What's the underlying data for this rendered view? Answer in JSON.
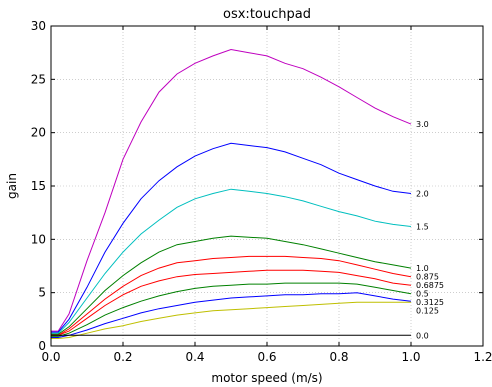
{
  "chart_data": {
    "type": "line",
    "title": "osx:touchpad",
    "xlabel": "motor speed (m/s)",
    "ylabel": "gain",
    "xlim": [
      0.0,
      1.2
    ],
    "ylim": [
      0,
      30
    ],
    "xticks": [
      "0.0",
      "0.2",
      "0.4",
      "0.6",
      "0.8",
      "1.0",
      "1.2"
    ],
    "yticks": [
      "0",
      "5",
      "10",
      "15",
      "20",
      "25",
      "30"
    ],
    "grid": true,
    "series": [
      {
        "name": "3.0",
        "color": "#bf00bf",
        "x": [
          0.0,
          0.02,
          0.05,
          0.1,
          0.15,
          0.2,
          0.25,
          0.3,
          0.35,
          0.4,
          0.45,
          0.5,
          0.55,
          0.6,
          0.65,
          0.7,
          0.75,
          0.8,
          0.85,
          0.9,
          0.95,
          1.0
        ],
        "y": [
          1.4,
          1.4,
          3.0,
          8.0,
          12.5,
          17.5,
          21.0,
          23.8,
          25.5,
          26.5,
          27.2,
          27.8,
          27.5,
          27.2,
          26.5,
          26.0,
          25.2,
          24.3,
          23.3,
          22.3,
          21.5,
          20.8
        ]
      },
      {
        "name": "2.0",
        "color": "#0000ff",
        "x": [
          0.0,
          0.02,
          0.05,
          0.1,
          0.15,
          0.2,
          0.25,
          0.3,
          0.35,
          0.4,
          0.45,
          0.5,
          0.55,
          0.6,
          0.65,
          0.7,
          0.75,
          0.8,
          0.85,
          0.9,
          0.95,
          1.0
        ],
        "y": [
          1.3,
          1.3,
          2.5,
          5.5,
          8.8,
          11.5,
          13.8,
          15.5,
          16.8,
          17.8,
          18.5,
          19.0,
          18.8,
          18.6,
          18.2,
          17.6,
          17.0,
          16.2,
          15.6,
          15.0,
          14.5,
          14.3
        ]
      },
      {
        "name": "1.5",
        "color": "#00bfbf",
        "x": [
          0.0,
          0.02,
          0.05,
          0.1,
          0.15,
          0.2,
          0.25,
          0.3,
          0.35,
          0.4,
          0.45,
          0.5,
          0.55,
          0.6,
          0.65,
          0.7,
          0.75,
          0.8,
          0.85,
          0.9,
          0.95,
          1.0
        ],
        "y": [
          1.2,
          1.2,
          2.2,
          4.5,
          6.8,
          8.8,
          10.5,
          11.8,
          13.0,
          13.8,
          14.3,
          14.7,
          14.5,
          14.3,
          14.0,
          13.6,
          13.1,
          12.6,
          12.2,
          11.7,
          11.4,
          11.2
        ]
      },
      {
        "name": "1.0",
        "color": "#008000",
        "x": [
          0.0,
          0.02,
          0.05,
          0.1,
          0.15,
          0.2,
          0.25,
          0.3,
          0.35,
          0.4,
          0.45,
          0.5,
          0.55,
          0.6,
          0.65,
          0.7,
          0.75,
          0.8,
          0.85,
          0.9,
          0.95,
          1.0
        ],
        "y": [
          1.1,
          1.1,
          1.8,
          3.5,
          5.2,
          6.6,
          7.8,
          8.8,
          9.5,
          9.8,
          10.1,
          10.3,
          10.2,
          10.1,
          9.8,
          9.5,
          9.1,
          8.7,
          8.3,
          7.9,
          7.6,
          7.3
        ]
      },
      {
        "name": "0.875",
        "color": "#ff0000",
        "x": [
          0.0,
          0.02,
          0.05,
          0.1,
          0.15,
          0.2,
          0.25,
          0.3,
          0.35,
          0.4,
          0.45,
          0.5,
          0.55,
          0.6,
          0.65,
          0.7,
          0.75,
          0.8,
          0.85,
          0.9,
          0.95,
          1.0
        ],
        "y": [
          1.0,
          1.0,
          1.6,
          3.0,
          4.4,
          5.6,
          6.6,
          7.3,
          7.8,
          8.0,
          8.2,
          8.3,
          8.4,
          8.4,
          8.4,
          8.3,
          8.2,
          8.0,
          7.6,
          7.2,
          6.8,
          6.5
        ]
      },
      {
        "name": "0.6875",
        "color": "#ff0000",
        "x": [
          0.0,
          0.02,
          0.05,
          0.1,
          0.15,
          0.2,
          0.25,
          0.3,
          0.35,
          0.4,
          0.45,
          0.5,
          0.55,
          0.6,
          0.65,
          0.7,
          0.75,
          0.8,
          0.85,
          0.9,
          0.95,
          1.0
        ],
        "y": [
          1.0,
          1.0,
          1.4,
          2.6,
          3.8,
          4.8,
          5.6,
          6.1,
          6.5,
          6.7,
          6.8,
          6.9,
          7.0,
          7.1,
          7.1,
          7.1,
          7.0,
          6.9,
          6.6,
          6.3,
          5.9,
          5.7
        ]
      },
      {
        "name": "0.5",
        "color": "#008000",
        "x": [
          0.0,
          0.02,
          0.05,
          0.1,
          0.15,
          0.2,
          0.25,
          0.3,
          0.35,
          0.4,
          0.45,
          0.5,
          0.55,
          0.6,
          0.65,
          0.7,
          0.75,
          0.8,
          0.85,
          0.9,
          0.95,
          1.0
        ],
        "y": [
          0.9,
          0.9,
          1.2,
          2.0,
          2.9,
          3.6,
          4.2,
          4.7,
          5.1,
          5.4,
          5.6,
          5.7,
          5.8,
          5.8,
          5.9,
          5.9,
          5.9,
          5.9,
          5.8,
          5.5,
          5.2,
          4.9
        ]
      },
      {
        "name": "0.3125",
        "color": "#0000ff",
        "x": [
          0.0,
          0.02,
          0.05,
          0.1,
          0.15,
          0.2,
          0.25,
          0.3,
          0.35,
          0.4,
          0.45,
          0.5,
          0.55,
          0.6,
          0.65,
          0.7,
          0.75,
          0.8,
          0.85,
          0.9,
          0.95,
          1.0
        ],
        "y": [
          0.8,
          0.8,
          1.0,
          1.5,
          2.1,
          2.6,
          3.1,
          3.5,
          3.8,
          4.1,
          4.3,
          4.5,
          4.6,
          4.7,
          4.8,
          4.8,
          4.9,
          4.9,
          5.0,
          4.7,
          4.4,
          4.2
        ]
      },
      {
        "name": "0.125",
        "color": "#bfbf00",
        "x": [
          0.0,
          0.02,
          0.05,
          0.1,
          0.15,
          0.2,
          0.25,
          0.3,
          0.35,
          0.4,
          0.45,
          0.5,
          0.55,
          0.6,
          0.65,
          0.7,
          0.75,
          0.8,
          0.85,
          0.9,
          0.95,
          1.0
        ],
        "y": [
          0.7,
          0.7,
          0.8,
          1.2,
          1.6,
          1.9,
          2.3,
          2.6,
          2.9,
          3.1,
          3.3,
          3.4,
          3.5,
          3.6,
          3.7,
          3.8,
          3.9,
          4.0,
          4.1,
          4.1,
          4.1,
          4.1
        ]
      },
      {
        "name": "0.0",
        "color": "#000000",
        "x": [
          0.0,
          1.0
        ],
        "y": [
          1.0,
          1.0
        ]
      }
    ]
  }
}
